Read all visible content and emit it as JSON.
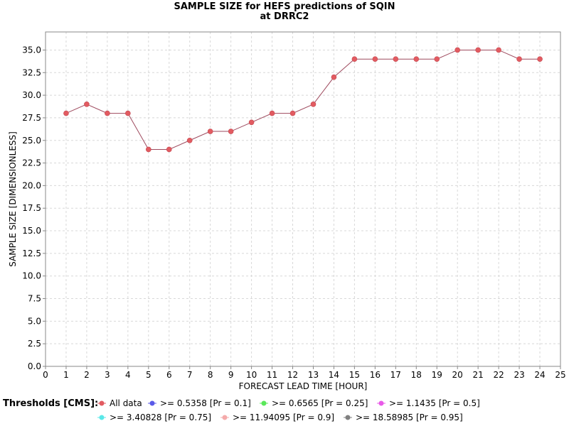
{
  "chart_data": {
    "type": "line",
    "title_line1": "SAMPLE SIZE for HEFS predictions of SQIN",
    "title_line2": "at DRRC2",
    "xlabel": "FORECAST LEAD TIME [HOUR]",
    "ylabel": "SAMPLE SIZE [DIMENSIONLESS]",
    "xlim": [
      0,
      25
    ],
    "ylim": [
      0,
      37
    ],
    "x_ticks": [
      0,
      1,
      2,
      3,
      4,
      5,
      6,
      7,
      8,
      9,
      10,
      11,
      12,
      13,
      14,
      15,
      16,
      17,
      18,
      19,
      20,
      21,
      22,
      23,
      24,
      25
    ],
    "y_ticks": [
      0.0,
      2.5,
      5.0,
      7.5,
      10.0,
      12.5,
      15.0,
      17.5,
      20.0,
      22.5,
      25.0,
      27.5,
      30.0,
      32.5,
      35.0
    ],
    "grid": true,
    "series": [
      {
        "name": "All data",
        "color": "#e25b61",
        "line_color": "#9e4a5e",
        "x": [
          1,
          2,
          3,
          4,
          5,
          6,
          7,
          8,
          9,
          10,
          11,
          12,
          13,
          14,
          15,
          16,
          17,
          18,
          19,
          20,
          21,
          22,
          23,
          24
        ],
        "values": [
          28,
          29,
          28,
          28,
          24,
          24,
          25,
          26,
          26,
          27,
          28,
          28,
          29,
          32,
          34,
          34,
          34,
          34,
          34,
          35,
          35,
          35,
          34,
          34
        ]
      }
    ],
    "legend": {
      "title": "Thresholds [CMS]:",
      "placement": "bottom",
      "entries": [
        {
          "label": "All data",
          "color": "#e25b61"
        },
        {
          "label": ">= 0.5358 [Pr = 0.1]",
          "color": "#5a5ae8"
        },
        {
          "label": ">= 0.6565 [Pr = 0.25]",
          "color": "#5ae85a"
        },
        {
          "label": ">= 1.1435 [Pr = 0.5]",
          "color": "#e85ae8"
        },
        {
          "label": ">= 3.40828 [Pr = 0.75]",
          "color": "#5ae8e8"
        },
        {
          "label": ">= 11.94095 [Pr = 0.9]",
          "color": "#f4aaaa"
        },
        {
          "label": ">= 18.58985 [Pr = 0.95]",
          "color": "#808080"
        }
      ]
    }
  }
}
